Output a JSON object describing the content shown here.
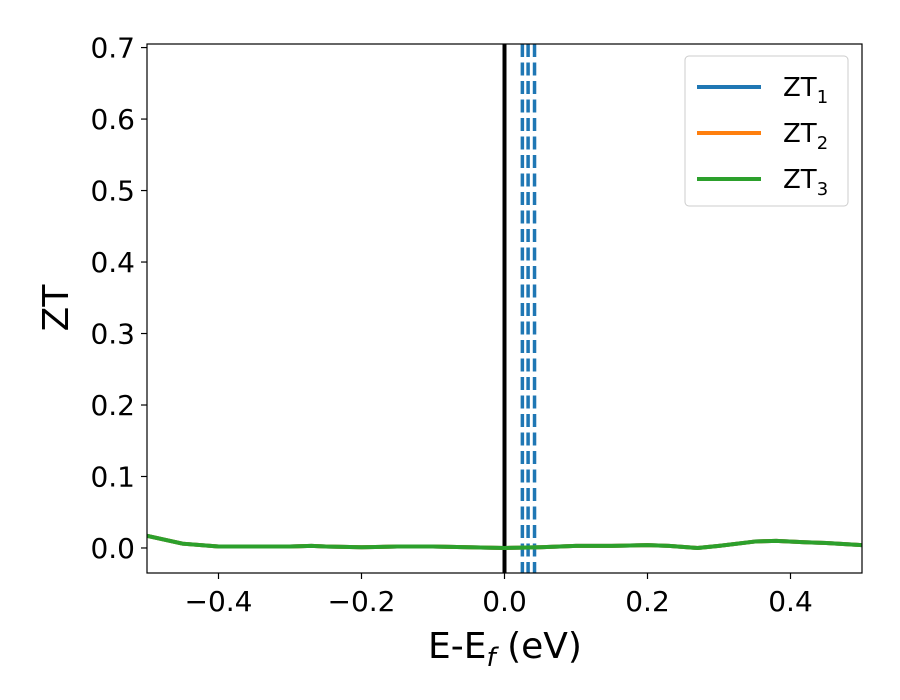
{
  "chart_data": {
    "type": "line",
    "xlabel": "E-E",
    "xlabel_sub": "f",
    "xlabel_unit": " (eV)",
    "ylabel": "ZT",
    "xlim": [
      -0.5,
      0.5
    ],
    "ylim": [
      -0.035,
      0.705
    ],
    "xticks": [
      -0.4,
      -0.2,
      0.0,
      0.2,
      0.4
    ],
    "xtick_labels": [
      "−0.4",
      "−0.2",
      "0.0",
      "0.2",
      "0.4"
    ],
    "yticks": [
      0.0,
      0.1,
      0.2,
      0.3,
      0.4,
      0.5,
      0.6,
      0.7
    ],
    "ytick_labels": [
      "0.0",
      "0.1",
      "0.2",
      "0.3",
      "0.4",
      "0.5",
      "0.6",
      "0.7"
    ],
    "grid": false,
    "legend_position": "top-right",
    "series": [
      {
        "name": "ZT",
        "name_sub": "1",
        "color": "#1f77b4",
        "x": [
          -0.5,
          -0.45,
          -0.4,
          -0.35,
          -0.3,
          -0.27,
          -0.25,
          -0.2,
          -0.15,
          -0.1,
          -0.05,
          0.0,
          0.05,
          0.1,
          0.15,
          0.2,
          0.23,
          0.27,
          0.3,
          0.35,
          0.38,
          0.42,
          0.45,
          0.5
        ],
        "y": [
          0.017,
          0.006,
          0.002,
          0.002,
          0.002,
          0.003,
          0.002,
          0.001,
          0.002,
          0.002,
          0.001,
          0.0,
          0.001,
          0.003,
          0.003,
          0.004,
          0.003,
          0.0,
          0.003,
          0.009,
          0.01,
          0.008,
          0.007,
          0.004
        ]
      },
      {
        "name": "ZT",
        "name_sub": "2",
        "color": "#ff7f0e",
        "x": [
          -0.5,
          -0.45,
          -0.4,
          -0.35,
          -0.3,
          -0.27,
          -0.25,
          -0.2,
          -0.15,
          -0.1,
          -0.05,
          0.0,
          0.05,
          0.1,
          0.15,
          0.2,
          0.23,
          0.27,
          0.3,
          0.35,
          0.38,
          0.42,
          0.45,
          0.5
        ],
        "y": [
          0.017,
          0.006,
          0.002,
          0.002,
          0.002,
          0.003,
          0.002,
          0.001,
          0.002,
          0.002,
          0.001,
          0.0,
          0.001,
          0.003,
          0.003,
          0.004,
          0.003,
          0.0,
          0.003,
          0.009,
          0.01,
          0.008,
          0.007,
          0.004
        ]
      },
      {
        "name": "ZT",
        "name_sub": "3",
        "color": "#2ca02c",
        "x": [
          -0.5,
          -0.45,
          -0.4,
          -0.35,
          -0.3,
          -0.27,
          -0.25,
          -0.2,
          -0.15,
          -0.1,
          -0.05,
          0.0,
          0.05,
          0.1,
          0.15,
          0.2,
          0.23,
          0.27,
          0.3,
          0.35,
          0.38,
          0.42,
          0.45,
          0.5
        ],
        "y": [
          0.017,
          0.006,
          0.002,
          0.002,
          0.002,
          0.003,
          0.002,
          0.001,
          0.002,
          0.002,
          0.001,
          0.0,
          0.001,
          0.003,
          0.003,
          0.004,
          0.003,
          0.0,
          0.003,
          0.009,
          0.01,
          0.008,
          0.007,
          0.004
        ]
      }
    ],
    "vertical_lines": [
      {
        "x": 0.0,
        "color": "#000000",
        "style": "solid"
      },
      {
        "x": 0.025,
        "color": "#1f77b4",
        "style": "dashed"
      },
      {
        "x": 0.033,
        "color": "#1f77b4",
        "style": "dashed"
      },
      {
        "x": 0.042,
        "color": "#1f77b4",
        "style": "dashed"
      }
    ]
  }
}
